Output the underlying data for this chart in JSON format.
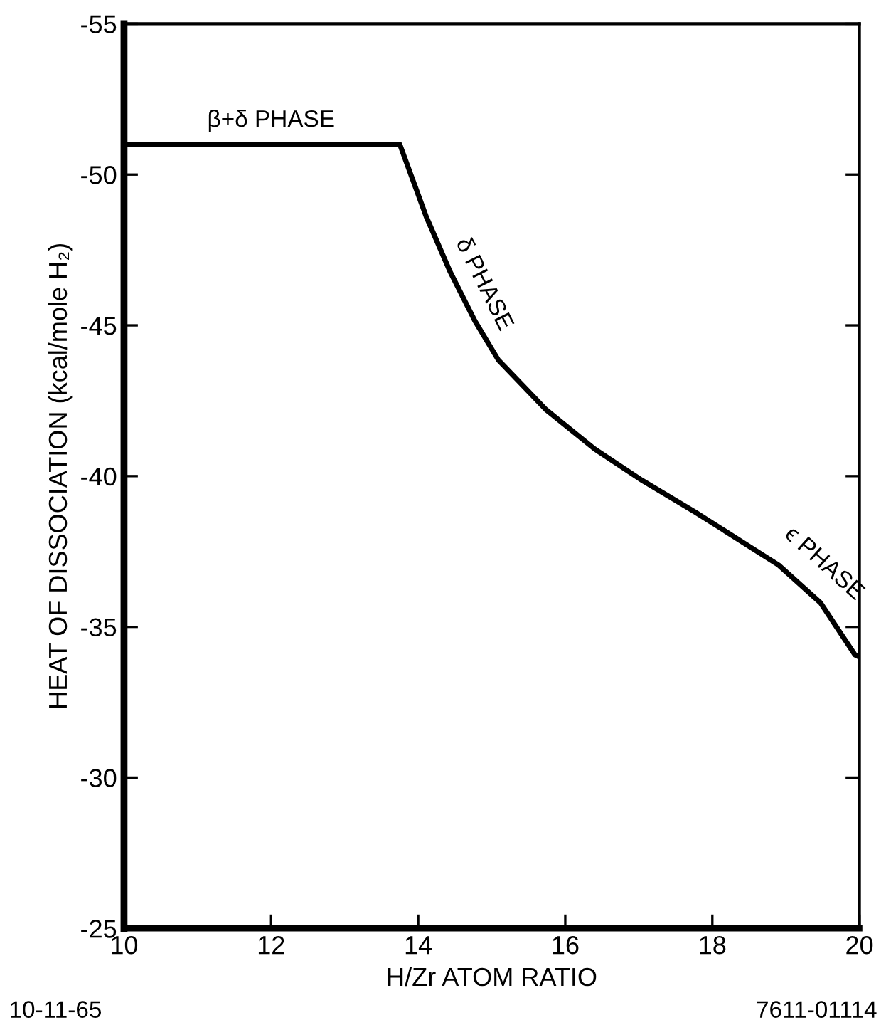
{
  "chart_data": {
    "type": "line",
    "xlabel": "H/Zr ATOM RATIO",
    "ylabel": "HEAT OF DISSOCIATION (kcal/mole H₂)",
    "x": [
      10,
      13.75,
      14.11,
      14.43,
      14.77,
      15.09,
      15.74,
      16.4,
      17.05,
      17.77,
      18.14,
      18.9,
      19.47,
      19.94,
      20
    ],
    "series": [
      {
        "color": "#000000",
        "values": [
          -51.0,
          -51.0,
          -48.6,
          -46.8,
          -45.15,
          -43.85,
          -42.2,
          -40.9,
          -39.85,
          -38.8,
          -38.23,
          -37.05,
          -35.8,
          -34.07,
          -34.0
        ]
      }
    ],
    "xlim": [
      10,
      20
    ],
    "xticks": [
      10,
      12,
      14,
      16,
      18,
      20
    ],
    "ylim": [
      -25,
      -55
    ],
    "yticks": [
      -55,
      -50,
      -45,
      -40,
      -35,
      -30,
      -25
    ],
    "grid": false,
    "legend": false,
    "marker": "none",
    "line_style": "solid",
    "annotations": [
      {
        "text": "β+δ PHASE",
        "x": 12.0,
        "y": -51.0
      },
      {
        "text": "δ PHASE",
        "x": 14.6,
        "y": -46.0
      },
      {
        "text": "ϵ PHASE",
        "x": 19.3,
        "y": -36.5
      },
      "10-11-65",
      "7611-01114"
    ]
  }
}
